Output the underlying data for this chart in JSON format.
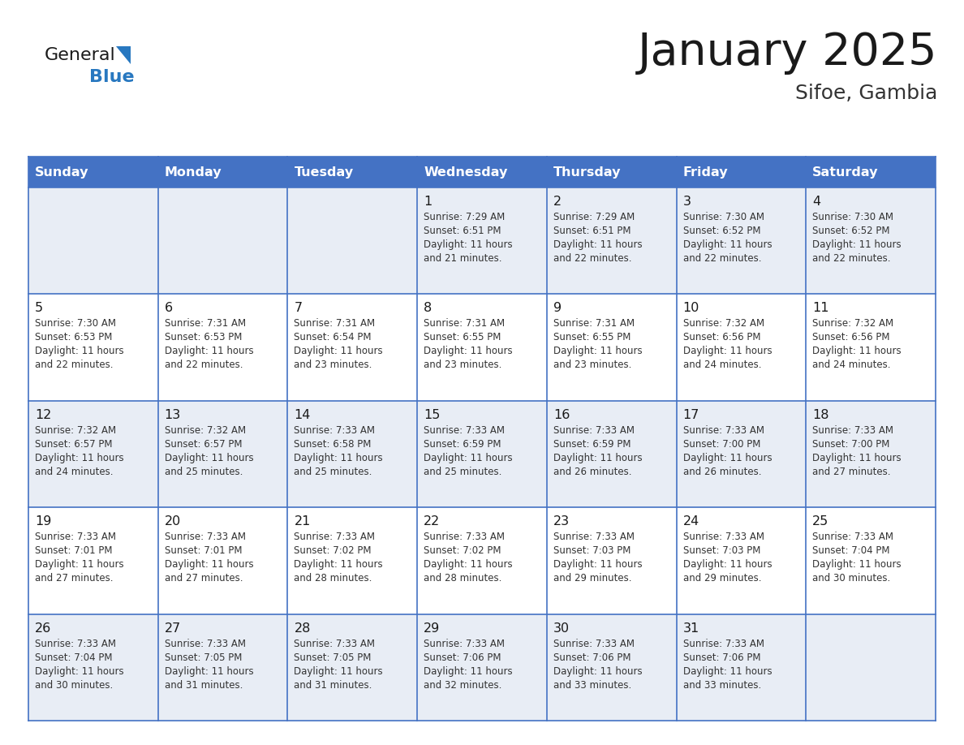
{
  "title": "January 2025",
  "subtitle": "Sifoe, Gambia",
  "header_bg": "#4472C4",
  "header_text_color": "#FFFFFF",
  "row_bg_light": "#E8EDF5",
  "row_bg_white": "#FFFFFF",
  "border_color": "#4472C4",
  "days_of_week": [
    "Sunday",
    "Monday",
    "Tuesday",
    "Wednesday",
    "Thursday",
    "Friday",
    "Saturday"
  ],
  "title_color": "#1a1a1a",
  "subtitle_color": "#333333",
  "day_number_color": "#1a1a1a",
  "cell_text_color": "#333333",
  "logo_general_color": "#1a1a1a",
  "logo_blue_color": "#2878C0",
  "logo_triangle_color": "#2878C0",
  "calendar": [
    [
      {
        "day": null,
        "sunrise": null,
        "sunset": null,
        "daylight": null
      },
      {
        "day": null,
        "sunrise": null,
        "sunset": null,
        "daylight": null
      },
      {
        "day": null,
        "sunrise": null,
        "sunset": null,
        "daylight": null
      },
      {
        "day": 1,
        "sunrise": "7:29 AM",
        "sunset": "6:51 PM",
        "daylight": "11 hours and 21 minutes."
      },
      {
        "day": 2,
        "sunrise": "7:29 AM",
        "sunset": "6:51 PM",
        "daylight": "11 hours and 22 minutes."
      },
      {
        "day": 3,
        "sunrise": "7:30 AM",
        "sunset": "6:52 PM",
        "daylight": "11 hours and 22 minutes."
      },
      {
        "day": 4,
        "sunrise": "7:30 AM",
        "sunset": "6:52 PM",
        "daylight": "11 hours and 22 minutes."
      }
    ],
    [
      {
        "day": 5,
        "sunrise": "7:30 AM",
        "sunset": "6:53 PM",
        "daylight": "11 hours and 22 minutes."
      },
      {
        "day": 6,
        "sunrise": "7:31 AM",
        "sunset": "6:53 PM",
        "daylight": "11 hours and 22 minutes."
      },
      {
        "day": 7,
        "sunrise": "7:31 AM",
        "sunset": "6:54 PM",
        "daylight": "11 hours and 23 minutes."
      },
      {
        "day": 8,
        "sunrise": "7:31 AM",
        "sunset": "6:55 PM",
        "daylight": "11 hours and 23 minutes."
      },
      {
        "day": 9,
        "sunrise": "7:31 AM",
        "sunset": "6:55 PM",
        "daylight": "11 hours and 23 minutes."
      },
      {
        "day": 10,
        "sunrise": "7:32 AM",
        "sunset": "6:56 PM",
        "daylight": "11 hours and 24 minutes."
      },
      {
        "day": 11,
        "sunrise": "7:32 AM",
        "sunset": "6:56 PM",
        "daylight": "11 hours and 24 minutes."
      }
    ],
    [
      {
        "day": 12,
        "sunrise": "7:32 AM",
        "sunset": "6:57 PM",
        "daylight": "11 hours and 24 minutes."
      },
      {
        "day": 13,
        "sunrise": "7:32 AM",
        "sunset": "6:57 PM",
        "daylight": "11 hours and 25 minutes."
      },
      {
        "day": 14,
        "sunrise": "7:33 AM",
        "sunset": "6:58 PM",
        "daylight": "11 hours and 25 minutes."
      },
      {
        "day": 15,
        "sunrise": "7:33 AM",
        "sunset": "6:59 PM",
        "daylight": "11 hours and 25 minutes."
      },
      {
        "day": 16,
        "sunrise": "7:33 AM",
        "sunset": "6:59 PM",
        "daylight": "11 hours and 26 minutes."
      },
      {
        "day": 17,
        "sunrise": "7:33 AM",
        "sunset": "7:00 PM",
        "daylight": "11 hours and 26 minutes."
      },
      {
        "day": 18,
        "sunrise": "7:33 AM",
        "sunset": "7:00 PM",
        "daylight": "11 hours and 27 minutes."
      }
    ],
    [
      {
        "day": 19,
        "sunrise": "7:33 AM",
        "sunset": "7:01 PM",
        "daylight": "11 hours and 27 minutes."
      },
      {
        "day": 20,
        "sunrise": "7:33 AM",
        "sunset": "7:01 PM",
        "daylight": "11 hours and 27 minutes."
      },
      {
        "day": 21,
        "sunrise": "7:33 AM",
        "sunset": "7:02 PM",
        "daylight": "11 hours and 28 minutes."
      },
      {
        "day": 22,
        "sunrise": "7:33 AM",
        "sunset": "7:02 PM",
        "daylight": "11 hours and 28 minutes."
      },
      {
        "day": 23,
        "sunrise": "7:33 AM",
        "sunset": "7:03 PM",
        "daylight": "11 hours and 29 minutes."
      },
      {
        "day": 24,
        "sunrise": "7:33 AM",
        "sunset": "7:03 PM",
        "daylight": "11 hours and 29 minutes."
      },
      {
        "day": 25,
        "sunrise": "7:33 AM",
        "sunset": "7:04 PM",
        "daylight": "11 hours and 30 minutes."
      }
    ],
    [
      {
        "day": 26,
        "sunrise": "7:33 AM",
        "sunset": "7:04 PM",
        "daylight": "11 hours and 30 minutes."
      },
      {
        "day": 27,
        "sunrise": "7:33 AM",
        "sunset": "7:05 PM",
        "daylight": "11 hours and 31 minutes."
      },
      {
        "day": 28,
        "sunrise": "7:33 AM",
        "sunset": "7:05 PM",
        "daylight": "11 hours and 31 minutes."
      },
      {
        "day": 29,
        "sunrise": "7:33 AM",
        "sunset": "7:06 PM",
        "daylight": "11 hours and 32 minutes."
      },
      {
        "day": 30,
        "sunrise": "7:33 AM",
        "sunset": "7:06 PM",
        "daylight": "11 hours and 33 minutes."
      },
      {
        "day": 31,
        "sunrise": "7:33 AM",
        "sunset": "7:06 PM",
        "daylight": "11 hours and 33 minutes."
      },
      {
        "day": null,
        "sunrise": null,
        "sunset": null,
        "daylight": null
      }
    ]
  ]
}
